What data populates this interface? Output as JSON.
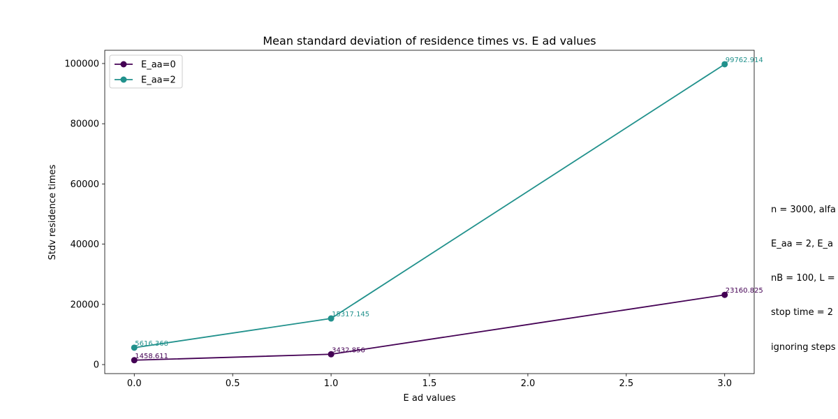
{
  "chart_data": {
    "type": "line",
    "title": "Mean standard deviation of residence times vs. E ad values",
    "xlabel": "E ad values",
    "ylabel": "Stdv residence times",
    "x": [
      0,
      1,
      3
    ],
    "xlim": [
      -0.15,
      3.15
    ],
    "ylim": [
      -3000,
      104400
    ],
    "xticks": [
      "0.0",
      "0.5",
      "1.0",
      "1.5",
      "2.0",
      "2.5",
      "3.0"
    ],
    "xtick_values": [
      0,
      0.5,
      1,
      1.5,
      2,
      2.5,
      3
    ],
    "yticks": [
      "0",
      "20000",
      "40000",
      "60000",
      "80000",
      "100000"
    ],
    "ytick_values": [
      0,
      20000,
      40000,
      60000,
      80000,
      100000
    ],
    "grid": false,
    "legend_position": "top-left",
    "series": [
      {
        "name": "E_aa=0",
        "color": "#440154",
        "values": [
          1458.611,
          3432.856,
          23160.825
        ],
        "labels": [
          "1458.611",
          "3432.856",
          "23160.825"
        ]
      },
      {
        "name": "E_aa=2",
        "color": "#21918c",
        "values": [
          5616.368,
          15317.145,
          99762.914
        ],
        "labels": [
          "5616.368",
          "15317.145",
          "99762.914"
        ]
      }
    ]
  },
  "side_note": {
    "lines": [
      "n = 3000, alfa",
      "E_aa = 2, E_a",
      "nB = 100, L =",
      "stop time = 2",
      "ignoring steps"
    ]
  }
}
